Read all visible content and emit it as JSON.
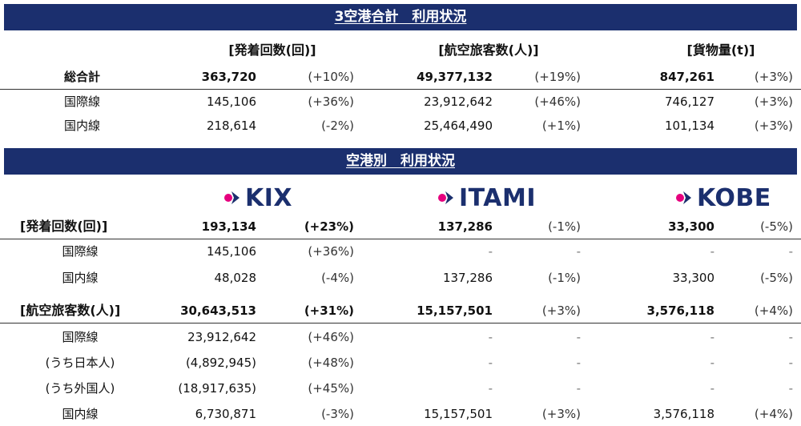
{
  "section1": {
    "title": "3空港合計　利用状況",
    "headers": [
      "[発着回数(回)]",
      "[航空旅客数(人)]",
      "[貨物量(t)]"
    ],
    "rows": [
      {
        "label": "総合計",
        "v1": "363,720",
        "p1": "(+10%)",
        "v2": "49,377,132",
        "p2": "(+19%)",
        "v3": "847,261",
        "p3": "(+3%)"
      },
      {
        "label": "国際線",
        "v1": "145,106",
        "p1": "(+36%)",
        "v2": "23,912,642",
        "p2": "(+46%)",
        "v3": "746,127",
        "p3": "(+3%)"
      },
      {
        "label": "国内線",
        "v1": "218,614",
        "p1": "(-2%)",
        "v2": "25,464,490",
        "p2": "(+1%)",
        "v3": "101,134",
        "p3": "(+3%)"
      }
    ]
  },
  "section2": {
    "title": "空港別　利用状況",
    "logos": [
      "KIX",
      "ITAMI",
      "KOBE"
    ],
    "rows": [
      {
        "label": "[発着回数(回)]",
        "v1": "193,134",
        "p1": "(+23%)",
        "v2": "137,286",
        "p2": "(-1%)",
        "v3": "33,300",
        "p3": "(-5%)"
      },
      {
        "label": "国際線",
        "v1": "145,106",
        "p1": "(+36%)",
        "v2": "-",
        "p2": "-",
        "v3": "-",
        "p3": "-"
      },
      {
        "label": "国内線",
        "v1": "48,028",
        "p1": "(-4%)",
        "v2": "137,286",
        "p2": "(-1%)",
        "v3": "33,300",
        "p3": "(-5%)"
      },
      {
        "label": "[航空旅客数(人)]",
        "v1": "30,643,513",
        "p1": "(+31%)",
        "v2": "15,157,501",
        "p2": "(+3%)",
        "v3": "3,576,118",
        "p3": "(+4%)"
      },
      {
        "label": "国際線",
        "v1": "23,912,642",
        "p1": "(+46%)",
        "v2": "-",
        "p2": "-",
        "v3": "-",
        "p3": "-"
      },
      {
        "label": "(うち日本人)",
        "v1": "(4,892,945)",
        "p1": "(+48%)",
        "v2": "-",
        "p2": "-",
        "v3": "-",
        "p3": "-"
      },
      {
        "label": "(うち外国人)",
        "v1": "(18,917,635)",
        "p1": "(+45%)",
        "v2": "-",
        "p2": "-",
        "v3": "-",
        "p3": "-"
      },
      {
        "label": "国内線",
        "v1": "6,730,871",
        "p1": "(-3%)",
        "v2": "15,157,501",
        "p2": "(+3%)",
        "v3": "3,576,118",
        "p3": "(+4%)"
      }
    ]
  },
  "colors": {
    "banner": "#1b2f6e",
    "logo_text": "#1b2f6e",
    "logo_mark_pink": "#e6007e",
    "logo_mark_navy": "#1b2f6e"
  },
  "icons": {
    "logo_mark": "airport-mark-icon"
  }
}
